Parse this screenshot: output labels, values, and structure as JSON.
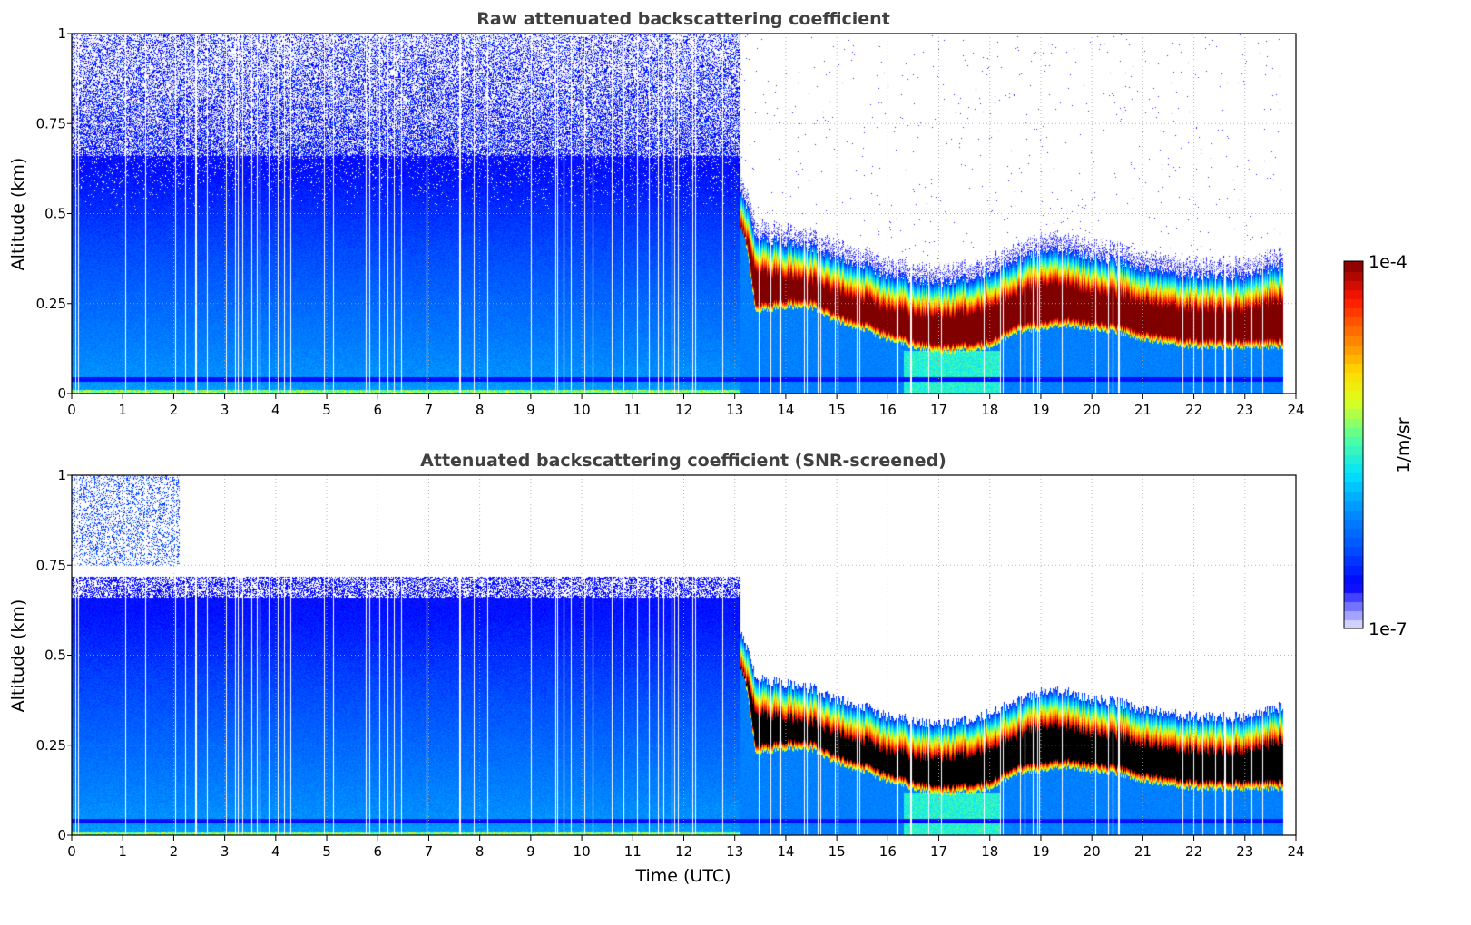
{
  "chart_data": [
    {
      "type": "heatmap",
      "title": "Raw attenuated backscattering coefficient",
      "xlabel": "",
      "ylabel": "Altitude (km)",
      "xlim": [
        0,
        24
      ],
      "ylim": [
        0,
        1
      ],
      "xticks": [
        "0",
        "1",
        "2",
        "3",
        "4",
        "5",
        "6",
        "7",
        "8",
        "9",
        "10",
        "11",
        "12",
        "13",
        "14",
        "15",
        "16",
        "17",
        "18",
        "19",
        "20",
        "21",
        "22",
        "23",
        "24"
      ],
      "yticks": [
        "0",
        "0.25",
        "0.5",
        "0.75",
        "1"
      ],
      "grid": true,
      "screened": false
    },
    {
      "type": "heatmap",
      "title": "Attenuated backscattering coefficient (SNR-screened)",
      "xlabel": "Time (UTC)",
      "ylabel": "Altitude (km)",
      "xlim": [
        0,
        24
      ],
      "ylim": [
        0,
        1
      ],
      "xticks": [
        "0",
        "1",
        "2",
        "3",
        "4",
        "5",
        "6",
        "7",
        "8",
        "9",
        "10",
        "11",
        "12",
        "13",
        "14",
        "15",
        "16",
        "17",
        "18",
        "19",
        "20",
        "21",
        "22",
        "23",
        "24"
      ],
      "yticks": [
        "0",
        "0.25",
        "0.5",
        "0.75",
        "1"
      ],
      "grid": true,
      "screened": true
    }
  ],
  "colorbar": {
    "label": "1/m/sr",
    "max_label": "1e-4",
    "min_label": "1e-7",
    "scale": "log",
    "range": [
      1e-07,
      0.0001
    ]
  },
  "layers": {
    "data_end_hour": 23.75,
    "cloud_onset_hour": 13.1,
    "aerosol_top_km": 0.66,
    "cloud_top_km": [
      [
        13.15,
        0.56
      ],
      [
        13.4,
        0.44
      ],
      [
        14,
        0.42
      ],
      [
        14.5,
        0.41
      ],
      [
        15,
        0.38
      ],
      [
        15.5,
        0.36
      ],
      [
        16,
        0.33
      ],
      [
        16.5,
        0.32
      ],
      [
        17,
        0.31
      ],
      [
        17.5,
        0.32
      ],
      [
        18,
        0.34
      ],
      [
        18.5,
        0.37
      ],
      [
        19,
        0.4
      ],
      [
        19.5,
        0.4
      ],
      [
        20,
        0.38
      ],
      [
        20.5,
        0.37
      ],
      [
        21,
        0.35
      ],
      [
        22,
        0.33
      ],
      [
        23,
        0.33
      ],
      [
        23.75,
        0.36
      ]
    ],
    "cloud_base_km": [
      [
        13.15,
        0.5
      ],
      [
        13.4,
        0.25
      ],
      [
        14,
        0.26
      ],
      [
        14.5,
        0.26
      ],
      [
        15,
        0.22
      ],
      [
        15.5,
        0.2
      ],
      [
        16,
        0.17
      ],
      [
        16.5,
        0.15
      ],
      [
        17,
        0.135
      ],
      [
        17.5,
        0.14
      ],
      [
        18,
        0.15
      ],
      [
        18.5,
        0.19
      ],
      [
        19,
        0.2
      ],
      [
        19.5,
        0.21
      ],
      [
        20,
        0.2
      ],
      [
        20.5,
        0.19
      ],
      [
        21,
        0.17
      ],
      [
        22,
        0.15
      ],
      [
        23,
        0.15
      ],
      [
        23.75,
        0.15
      ]
    ],
    "colors": {
      "saturated_screened": "#000000",
      "title": "#404040"
    }
  }
}
